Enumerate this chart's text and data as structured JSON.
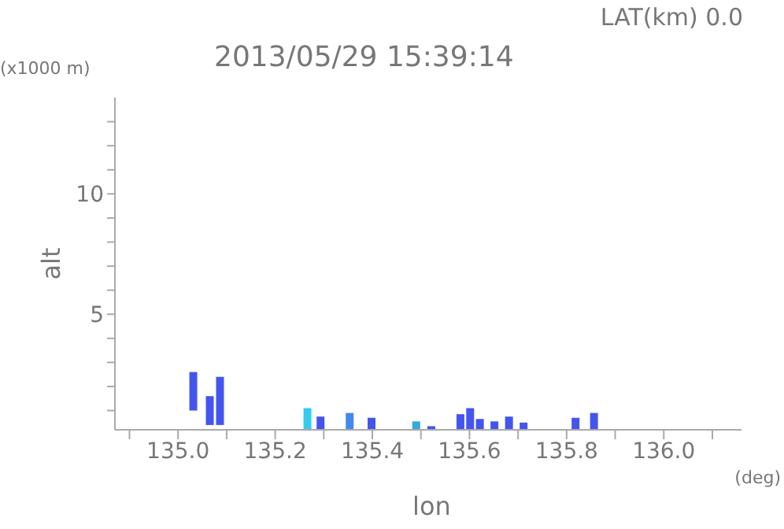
{
  "chart_data": {
    "type": "bar",
    "title": "2013/05/29 15:39:14",
    "subtitle": "LAT(km) 0.0",
    "xlabel": "lon",
    "ylabel": "alt",
    "annotations": [
      "(x1000 m)",
      "(deg)"
    ],
    "x": [
      135.03,
      135.064,
      135.085,
      135.265,
      135.292,
      135.352,
      135.397,
      135.489,
      135.52,
      135.58,
      135.6,
      135.62,
      135.65,
      135.68,
      135.71,
      135.817,
      135.855
    ],
    "base": [
      1.0,
      0.4,
      0.4,
      0.2,
      0.2,
      0.2,
      0.2,
      0.2,
      0.2,
      0.2,
      0.2,
      0.2,
      0.2,
      0.2,
      0.2,
      0.2,
      0.2
    ],
    "values": [
      1.6,
      1.2,
      2.0,
      0.9,
      0.55,
      0.7,
      0.5,
      0.35,
      0.15,
      0.65,
      0.9,
      0.45,
      0.35,
      0.55,
      0.3,
      0.5,
      0.7
    ],
    "colors": [
      "#4455ee",
      "#4455ee",
      "#4455ee",
      "#33ccee",
      "#4455ee",
      "#4488ee",
      "#4455ee",
      "#33aadd",
      "#4455ee",
      "#4455ee",
      "#4455ee",
      "#4455ee",
      "#4455ee",
      "#4455ee",
      "#4455ee",
      "#4455ee",
      "#4455ee"
    ],
    "xlim": [
      134.87,
      136.16
    ],
    "xticks": [
      {
        "value": 134.9,
        "label": null
      },
      {
        "value": 135.0,
        "label": "135.0"
      },
      {
        "value": 135.1,
        "label": null
      },
      {
        "value": 135.2,
        "label": "135.2"
      },
      {
        "value": 135.3,
        "label": null
      },
      {
        "value": 135.4,
        "label": "135.4"
      },
      {
        "value": 135.5,
        "label": null
      },
      {
        "value": 135.6,
        "label": "135.6"
      },
      {
        "value": 135.7,
        "label": null
      },
      {
        "value": 135.8,
        "label": "135.8"
      },
      {
        "value": 135.9,
        "label": null
      },
      {
        "value": 136.0,
        "label": "136.0"
      },
      {
        "value": 136.1,
        "label": null
      }
    ],
    "ylim": [
      0.2,
      14
    ],
    "yticks": [
      {
        "value": 1,
        "label": null
      },
      {
        "value": 2,
        "label": null
      },
      {
        "value": 3,
        "label": null
      },
      {
        "value": 4,
        "label": null
      },
      5,
      {
        "value": 6,
        "label": null
      },
      {
        "value": 7,
        "label": null
      },
      {
        "value": 8,
        "label": null
      },
      {
        "value": 9,
        "label": null
      },
      10,
      {
        "value": 11,
        "label": null
      },
      {
        "value": 12,
        "label": null
      },
      {
        "value": 13,
        "label": null
      }
    ],
    "grid": false
  }
}
